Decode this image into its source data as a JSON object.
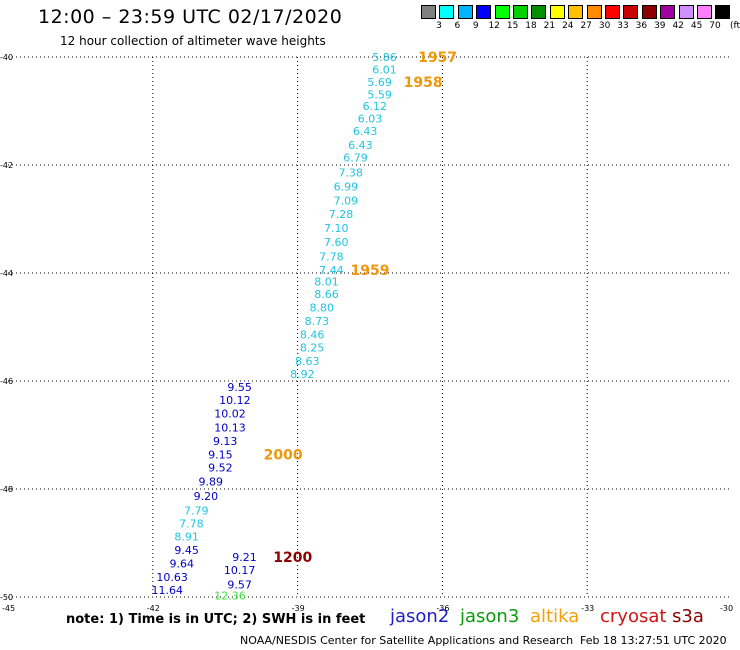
{
  "header": {
    "title": "12:00 – 23:59 UTC 02/17/2020",
    "subtitle": "12 hour collection of altimeter wave heights"
  },
  "color_scale": {
    "unit": "(ft)",
    "colors": [
      "#808080",
      "#00ffff",
      "#00b4ff",
      "#0000ff",
      "#00ff00",
      "#00d000",
      "#009000",
      "#ffff00",
      "#ffc000",
      "#ff8c00",
      "#ff0000",
      "#c80000",
      "#8c0000",
      "#a000a0",
      "#d090ff",
      "#ff80ff",
      "#000000"
    ],
    "labels": [
      "3",
      "6",
      "9",
      "12",
      "15",
      "18",
      "21",
      "24",
      "27",
      "30",
      "33",
      "36",
      "39",
      "42",
      "45",
      "70"
    ]
  },
  "chart_data": {
    "type": "scatter",
    "xlim": [
      -45,
      -30
    ],
    "ylim": [
      -50,
      -40
    ],
    "x_ticks": [
      "-45",
      "-42",
      "-39",
      "-36",
      "-33",
      "-30"
    ],
    "y_ticks": [
      "-40",
      "-42",
      "-44",
      "-46",
      "-48",
      "-50"
    ],
    "grid": true,
    "series": [
      {
        "color": "#20c4e0",
        "points": [
          {
            "lon": -37.2,
            "lat": -40.0,
            "swh": "5.86"
          },
          {
            "lon": -37.2,
            "lat": -40.23,
            "swh": "6.01"
          },
          {
            "lon": -37.3,
            "lat": -40.46,
            "swh": "5.69"
          },
          {
            "lon": -37.3,
            "lat": -40.69,
            "swh": "5.59"
          },
          {
            "lon": -37.4,
            "lat": -40.91,
            "swh": "6.12"
          },
          {
            "lon": -37.5,
            "lat": -41.14,
            "swh": "6.03"
          },
          {
            "lon": -37.6,
            "lat": -41.37,
            "swh": "6.43"
          },
          {
            "lon": -37.7,
            "lat": -41.63,
            "swh": "6.43"
          },
          {
            "lon": -37.8,
            "lat": -41.86,
            "swh": "6.79"
          },
          {
            "lon": -37.9,
            "lat": -42.14,
            "swh": "7.38"
          },
          {
            "lon": -38.0,
            "lat": -42.4,
            "swh": "6.99"
          },
          {
            "lon": -38.0,
            "lat": -42.66,
            "swh": "7.09"
          },
          {
            "lon": -38.1,
            "lat": -42.91,
            "swh": "7.28"
          },
          {
            "lon": -38.2,
            "lat": -43.17,
            "swh": "7.10"
          },
          {
            "lon": -38.2,
            "lat": -43.43,
            "swh": "7.60"
          },
          {
            "lon": -38.3,
            "lat": -43.69,
            "swh": "7.78"
          },
          {
            "lon": -38.3,
            "lat": -43.94,
            "swh": "7.44"
          },
          {
            "lon": -38.4,
            "lat": -44.16,
            "swh": "8.01"
          },
          {
            "lon": -38.4,
            "lat": -44.39,
            "swh": "8.66"
          },
          {
            "lon": -38.5,
            "lat": -44.64,
            "swh": "8.80"
          },
          {
            "lon": -38.6,
            "lat": -44.89,
            "swh": "8.73"
          },
          {
            "lon": -38.7,
            "lat": -45.14,
            "swh": "8.46"
          },
          {
            "lon": -38.7,
            "lat": -45.38,
            "swh": "8.25"
          },
          {
            "lon": -38.8,
            "lat": -45.63,
            "swh": "8.63"
          },
          {
            "lon": -38.9,
            "lat": -45.87,
            "swh": "8.92"
          },
          {
            "lon": -41.1,
            "lat": -48.4,
            "swh": "7.79"
          },
          {
            "lon": -41.2,
            "lat": -48.64,
            "swh": "7.78"
          },
          {
            "lon": -41.3,
            "lat": -48.88,
            "swh": "8.91"
          }
        ]
      },
      {
        "color": "#0000c8",
        "points": [
          {
            "lon": -40.2,
            "lat": -46.11,
            "swh": "9.55"
          },
          {
            "lon": -40.3,
            "lat": -46.35,
            "swh": "10.12"
          },
          {
            "lon": -40.4,
            "lat": -46.6,
            "swh": "10.02"
          },
          {
            "lon": -40.4,
            "lat": -46.86,
            "swh": "10.13"
          },
          {
            "lon": -40.5,
            "lat": -47.11,
            "swh": "9.13"
          },
          {
            "lon": -40.6,
            "lat": -47.36,
            "swh": "9.15"
          },
          {
            "lon": -40.6,
            "lat": -47.6,
            "swh": "9.52"
          },
          {
            "lon": -40.8,
            "lat": -47.86,
            "swh": "9.89"
          },
          {
            "lon": -40.9,
            "lat": -48.13,
            "swh": "9.20"
          },
          {
            "lon": -41.3,
            "lat": -49.13,
            "swh": "9.45"
          },
          {
            "lon": -41.4,
            "lat": -49.38,
            "swh": "9.64"
          },
          {
            "lon": -41.6,
            "lat": -49.63,
            "swh": "10.63"
          },
          {
            "lon": -41.7,
            "lat": -49.87,
            "swh": "11.64"
          },
          {
            "lon": -40.1,
            "lat": -49.26,
            "swh": "9.21"
          },
          {
            "lon": -40.2,
            "lat": -49.5,
            "swh": "10.17"
          },
          {
            "lon": -40.2,
            "lat": -49.77,
            "swh": "9.57"
          }
        ]
      },
      {
        "color": "#40e040",
        "points": [
          {
            "lon": -40.4,
            "lat": -49.97,
            "swh": "12.36"
          }
        ]
      }
    ],
    "pass_labels": [
      {
        "text": "1957",
        "lon": -36.1,
        "lat": -40.0,
        "color": "#f0960a"
      },
      {
        "text": "1958",
        "lon": -36.4,
        "lat": -40.46,
        "color": "#f0960a"
      },
      {
        "text": "1959",
        "lon": -37.5,
        "lat": -43.94,
        "color": "#f0960a"
      },
      {
        "text": "2000",
        "lon": -39.3,
        "lat": -47.36,
        "color": "#f0960a"
      },
      {
        "text": "1200",
        "lon": -39.1,
        "lat": -49.26,
        "color": "#8c0000"
      }
    ]
  },
  "footer": {
    "note": "note:  1) Time is in UTC;  2) SWH is in feet",
    "satellites": [
      {
        "name": "jason2",
        "color": "#1e1ec8"
      },
      {
        "name": "jason3",
        "color": "#0a9b0a"
      },
      {
        "name": "altika",
        "color": "#f5a00a"
      },
      {
        "name": "cryosat",
        "color": "#d21414"
      },
      {
        "name": "s3a",
        "color": "#8c0000"
      }
    ],
    "credit": "NOAA/NESDIS Center for Satellite Applications and Research",
    "timestamp": "Feb 18 13:27:51 UTC 2020"
  }
}
